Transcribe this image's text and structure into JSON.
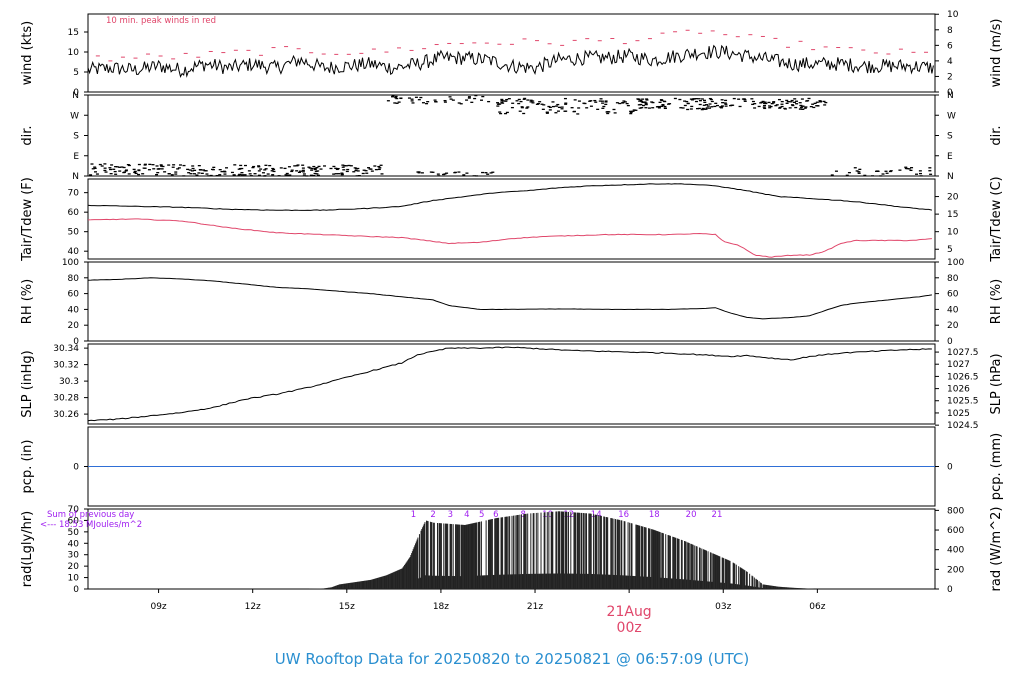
{
  "title": "UW Rooftop Data for 20250820  to  20250821 @ 06:57:09  (UTC)",
  "colors": {
    "primary": "#000000",
    "accent": "#e0476b",
    "title": "#2a8fd0",
    "note_purple": "#a020f0",
    "baseline_blue": "#2f6fd6"
  },
  "chart_data": [
    {
      "id": "wind",
      "type": "line",
      "ylabel": "wind (kts)",
      "ylabel_right": "wind (m/s)",
      "ylim": [
        0,
        19.5
      ],
      "yticks": [
        0,
        5,
        10,
        15
      ],
      "right_ticks": [
        {
          "v": 0,
          "label": "0"
        },
        {
          "v": 3.89,
          "label": "2"
        },
        {
          "v": 7.78,
          "label": "4"
        },
        {
          "v": 11.66,
          "label": "6"
        },
        {
          "v": 15.55,
          "label": "8"
        },
        {
          "v": 19.44,
          "label": "10"
        }
      ],
      "annotation": "10 min. peak winds in red",
      "series": [
        {
          "type": "noisy",
          "anchors": [
            [
              0,
              5.5
            ],
            [
              3,
              6
            ],
            [
              6,
              5.5
            ],
            [
              9,
              6.5
            ],
            [
              12,
              5.5
            ],
            [
              15,
              7
            ],
            [
              18,
              6
            ],
            [
              21,
              7
            ],
            [
              24,
              6
            ],
            [
              27,
              8
            ],
            [
              30,
              6
            ],
            [
              33,
              6.5
            ],
            [
              36,
              7
            ],
            [
              39,
              6
            ],
            [
              42,
              7
            ],
            [
              45,
              8.5
            ],
            [
              48,
              8.5
            ],
            [
              51,
              8
            ],
            [
              54,
              6.5
            ],
            [
              57,
              6
            ],
            [
              60,
              8
            ],
            [
              63,
              8.5
            ],
            [
              66,
              8.5
            ],
            [
              69,
              9
            ],
            [
              72,
              8
            ],
            [
              75,
              9
            ],
            [
              78,
              10
            ],
            [
              81,
              10
            ],
            [
              84,
              9
            ],
            [
              87,
              8
            ],
            [
              90,
              7
            ],
            [
              93,
              7
            ],
            [
              96,
              7
            ],
            [
              99,
              6.5
            ],
            [
              102,
              6.5
            ],
            [
              105,
              6.5
            ],
            [
              108,
              6
            ]
          ],
          "noise": 1.8
        },
        {
          "type": "peaks",
          "anchors": [
            [
              0,
              8
            ],
            [
              12,
              8.5
            ],
            [
              24,
              10
            ],
            [
              36,
              9.5
            ],
            [
              48,
              12
            ],
            [
              60,
              12
            ],
            [
              72,
              13
            ],
            [
              78,
              15
            ],
            [
              84,
              13
            ],
            [
              96,
              10
            ],
            [
              108,
              9
            ]
          ],
          "noise": 2
        }
      ]
    },
    {
      "id": "dir",
      "type": "scatter",
      "ylabel": "dir.",
      "yticks": [
        {
          "v": 0,
          "label": "N"
        },
        {
          "v": 90,
          "label": "E"
        },
        {
          "v": 180,
          "label": "S"
        },
        {
          "v": 270,
          "label": "W"
        },
        {
          "v": 360,
          "label": "N"
        }
      ],
      "ylim": [
        0,
        360
      ],
      "clusters": [
        {
          "from": 0,
          "to": 12,
          "center": 30,
          "spread": 25,
          "density": 2
        },
        {
          "from": 12,
          "to": 38,
          "center": 25,
          "spread": 25,
          "density": 2
        },
        {
          "from": 38,
          "to": 52,
          "center": 350,
          "spread": 30,
          "density": 1.5
        },
        {
          "from": 52,
          "to": 70,
          "center": 310,
          "spread": 35,
          "density": 2
        },
        {
          "from": 70,
          "to": 94,
          "center": 320,
          "spread": 25,
          "density": 2.5
        },
        {
          "from": 94,
          "to": 108,
          "center": 20,
          "spread": 20,
          "density": 0.8
        }
      ]
    },
    {
      "id": "temp",
      "type": "line",
      "ylabel": "Tair/Tdew (F)",
      "ylabel_right": "Tair/Tdew (C)",
      "ylim": [
        36,
        77
      ],
      "yticks": [
        40,
        50,
        60,
        70
      ],
      "right_ticks": [
        {
          "v": 41,
          "label": "5"
        },
        {
          "v": 50,
          "label": "10"
        },
        {
          "v": 59,
          "label": "15"
        },
        {
          "v": 68,
          "label": "20"
        }
      ],
      "series": [
        {
          "name": "Tair",
          "color": "#000000",
          "values": [
            [
              0,
              63.5
            ],
            [
              6,
              63
            ],
            [
              12,
              62.5
            ],
            [
              18,
              61.5
            ],
            [
              24,
              61
            ],
            [
              30,
              61
            ],
            [
              36,
              62
            ],
            [
              40,
              63
            ],
            [
              44,
              66
            ],
            [
              48,
              68
            ],
            [
              52,
              70
            ],
            [
              56,
              71
            ],
            [
              60,
              72.5
            ],
            [
              64,
              73.5
            ],
            [
              68,
              74
            ],
            [
              72,
              74.5
            ],
            [
              76,
              74.5
            ],
            [
              80,
              73.5
            ],
            [
              84,
              71
            ],
            [
              88,
              68
            ],
            [
              92,
              67
            ],
            [
              96,
              66
            ],
            [
              100,
              64.5
            ],
            [
              104,
              62.5
            ],
            [
              108,
              61
            ]
          ]
        },
        {
          "name": "Tdew",
          "color": "#e0476b",
          "values": [
            [
              0,
              56
            ],
            [
              6,
              56.5
            ],
            [
              12,
              55.5
            ],
            [
              18,
              52
            ],
            [
              24,
              49.5
            ],
            [
              30,
              48.5
            ],
            [
              36,
              47.5
            ],
            [
              40,
              47
            ],
            [
              44,
              45
            ],
            [
              46,
              44
            ],
            [
              50,
              44.5
            ],
            [
              54,
              46.5
            ],
            [
              58,
              47.5
            ],
            [
              62,
              48
            ],
            [
              66,
              48.5
            ],
            [
              70,
              48.5
            ],
            [
              74,
              48.5
            ],
            [
              78,
              49
            ],
            [
              80,
              48.5
            ],
            [
              81,
              45
            ],
            [
              83,
              43
            ],
            [
              85,
              38
            ],
            [
              87,
              37
            ],
            [
              90,
              38
            ],
            [
              92,
              38
            ],
            [
              94,
              40
            ],
            [
              96,
              44
            ],
            [
              98,
              45.5
            ],
            [
              102,
              45.5
            ],
            [
              105,
              45.5
            ],
            [
              108,
              46.5
            ]
          ]
        }
      ]
    },
    {
      "id": "rh",
      "type": "line",
      "ylabel": "RH (%)",
      "ylabel_right": "RH (%)",
      "ylim": [
        0,
        100
      ],
      "yticks": [
        0,
        20,
        40,
        60,
        80,
        100
      ],
      "series": [
        {
          "name": "RH",
          "color": "#000000",
          "values": [
            [
              0,
              77
            ],
            [
              4,
              78
            ],
            [
              8,
              80
            ],
            [
              12,
              78.5
            ],
            [
              16,
              76
            ],
            [
              20,
              72
            ],
            [
              24,
              68
            ],
            [
              28,
              66
            ],
            [
              32,
              63
            ],
            [
              36,
              60
            ],
            [
              40,
              56
            ],
            [
              44,
              52
            ],
            [
              46,
              45
            ],
            [
              50,
              40
            ],
            [
              54,
              40
            ],
            [
              58,
              40.5
            ],
            [
              62,
              40.5
            ],
            [
              66,
              40
            ],
            [
              70,
              40
            ],
            [
              74,
              40
            ],
            [
              78,
              41
            ],
            [
              80,
              42
            ],
            [
              82,
              35
            ],
            [
              84,
              30
            ],
            [
              86,
              28
            ],
            [
              90,
              30
            ],
            [
              92,
              32
            ],
            [
              96,
              45
            ],
            [
              98,
              48
            ],
            [
              102,
              52
            ],
            [
              106,
              56
            ],
            [
              108,
              59
            ]
          ]
        }
      ]
    },
    {
      "id": "slp",
      "type": "line",
      "ylabel": "SLP (inHg)",
      "ylabel_right": "SLP (hPa)",
      "ylim": [
        30.248,
        30.345
      ],
      "yticks": [
        30.26,
        30.28,
        30.3,
        30.32,
        30.34
      ],
      "right_ticks": [
        {
          "v": 30.2466,
          "label": "1024.5"
        },
        {
          "v": 30.2614,
          "label": "1025"
        },
        {
          "v": 30.2762,
          "label": "1025.5"
        },
        {
          "v": 30.2909,
          "label": "1026"
        },
        {
          "v": 30.3057,
          "label": "1026.5"
        },
        {
          "v": 30.3205,
          "label": "1027"
        },
        {
          "v": 30.3352,
          "label": "1027.5"
        }
      ],
      "series": [
        {
          "name": "SLP",
          "color": "#000000",
          "values": [
            [
              0,
              30.252
            ],
            [
              4,
              30.254
            ],
            [
              8,
              30.258
            ],
            [
              12,
              30.262
            ],
            [
              16,
              30.268
            ],
            [
              20,
              30.278
            ],
            [
              24,
              30.284
            ],
            [
              28,
              30.292
            ],
            [
              32,
              30.302
            ],
            [
              36,
              30.312
            ],
            [
              40,
              30.322
            ],
            [
              42,
              30.332
            ],
            [
              44,
              30.336
            ],
            [
              46,
              30.34
            ],
            [
              50,
              30.34
            ],
            [
              54,
              30.341
            ],
            [
              58,
              30.339
            ],
            [
              62,
              30.337
            ],
            [
              66,
              30.336
            ],
            [
              70,
              30.335
            ],
            [
              74,
              30.334
            ],
            [
              78,
              30.332
            ],
            [
              82,
              30.33
            ],
            [
              84,
              30.331
            ],
            [
              88,
              30.327
            ],
            [
              90,
              30.326
            ],
            [
              92,
              30.33
            ],
            [
              96,
              30.334
            ],
            [
              100,
              30.336
            ],
            [
              104,
              30.338
            ],
            [
              108,
              30.339
            ]
          ]
        }
      ]
    },
    {
      "id": "pcp",
      "type": "line",
      "ylabel": "pcp. (in)",
      "ylabel_right": "pcp. (mm)",
      "ylim": [
        -1,
        1
      ],
      "yticks": [
        {
          "v": 0,
          "label": "0"
        }
      ],
      "right_ticks": [
        {
          "v": 0,
          "label": "0"
        }
      ],
      "series": [
        {
          "name": "precip",
          "color": "#2f6fd6",
          "values": [
            [
              0,
              0
            ],
            [
              108,
              0
            ]
          ]
        }
      ]
    },
    {
      "id": "rad",
      "type": "bar",
      "ylabel": "rad(Lgly/hr)",
      "ylabel_right": "rad (W/m^2)",
      "ylim": [
        0,
        70
      ],
      "yticks": [
        0,
        10,
        20,
        30,
        40,
        50,
        60,
        70
      ],
      "right_ticks": [
        {
          "v": 0,
          "label": "0"
        },
        {
          "v": 17.2,
          "label": "200"
        },
        {
          "v": 34.4,
          "label": "400"
        },
        {
          "v": 51.6,
          "label": "600"
        },
        {
          "v": 68.8,
          "label": "800"
        }
      ],
      "note_lines": [
        "Sum of previous day",
        "<--- 18.53 MJoules/m^2"
      ],
      "hour_labels": [
        {
          "x": 41.5,
          "label": "1"
        },
        {
          "x": 44,
          "label": "2"
        },
        {
          "x": 46.2,
          "label": "3"
        },
        {
          "x": 48.3,
          "label": "4"
        },
        {
          "x": 50.2,
          "label": "5"
        },
        {
          "x": 52,
          "label": "6"
        },
        {
          "x": 55.5,
          "label": "8"
        },
        {
          "x": 58.6,
          "label": "10"
        },
        {
          "x": 61.3,
          "label": "12"
        },
        {
          "x": 64.8,
          "label": "14"
        },
        {
          "x": 68.3,
          "label": "16"
        },
        {
          "x": 72.2,
          "label": "18"
        },
        {
          "x": 76.9,
          "label": "20"
        },
        {
          "x": 80.2,
          "label": "21"
        }
      ],
      "envelope": [
        [
          27,
          0
        ],
        [
          30,
          0.5
        ],
        [
          31,
          1.5
        ],
        [
          32,
          4
        ],
        [
          34,
          6
        ],
        [
          36,
          8
        ],
        [
          38,
          12
        ],
        [
          40,
          18
        ],
        [
          41,
          28
        ],
        [
          42,
          45
        ],
        [
          43,
          60
        ],
        [
          44,
          58
        ],
        [
          48,
          56
        ],
        [
          52,
          62
        ],
        [
          56,
          66
        ],
        [
          60,
          68
        ],
        [
          64,
          66
        ],
        [
          68,
          60
        ],
        [
          72,
          52
        ],
        [
          76,
          42
        ],
        [
          78,
          36
        ],
        [
          80,
          30
        ],
        [
          82,
          24
        ],
        [
          84,
          15
        ],
        [
          86,
          4
        ],
        [
          88,
          2
        ],
        [
          90,
          1
        ],
        [
          93,
          0
        ]
      ]
    }
  ],
  "x_axis": {
    "domain_hours": [
      0,
      108
    ],
    "ticks": [
      {
        "x": 9,
        "label": "09z"
      },
      {
        "x": 21,
        "label": "12z"
      },
      {
        "x": 33,
        "label": "15z"
      },
      {
        "x": 45,
        "label": "18z"
      },
      {
        "x": 57,
        "label": "21z"
      },
      {
        "x": 69,
        "label": "00z"
      },
      {
        "x": 81,
        "label": "03z"
      },
      {
        "x": 93,
        "label": "06z"
      }
    ],
    "date_label": "21Aug",
    "date_sub": "00z"
  }
}
